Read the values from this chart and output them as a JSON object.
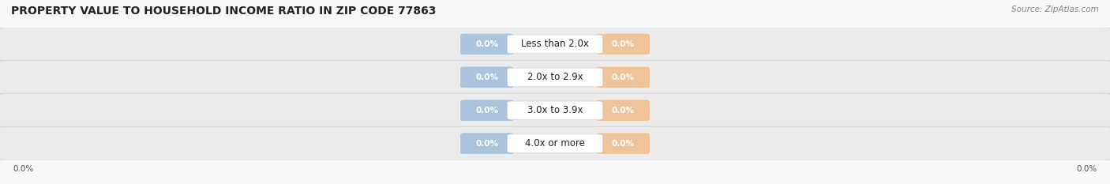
{
  "title": "PROPERTY VALUE TO HOUSEHOLD INCOME RATIO IN ZIP CODE 77863",
  "source": "Source: ZipAtlas.com",
  "categories": [
    "Less than 2.0x",
    "2.0x to 2.9x",
    "3.0x to 3.9x",
    "4.0x or more"
  ],
  "without_mortgage": [
    0.0,
    0.0,
    0.0,
    0.0
  ],
  "with_mortgage": [
    0.0,
    0.0,
    0.0,
    0.0
  ],
  "without_mortgage_color": "#aac4de",
  "with_mortgage_color": "#f0c49a",
  "bar_bg_color": "#ebebeb",
  "bar_bg_edge_color": "#d8d8d8",
  "title_fontsize": 10,
  "label_fontsize": 7.5,
  "category_fontsize": 8.5,
  "legend_fontsize": 8.5,
  "source_fontsize": 7.5,
  "tick_label_left": "0.0%",
  "tick_label_right": "0.0%",
  "background_color": "#f7f7f7",
  "pill_label_color": "#ffffff",
  "category_label_color": "#222222",
  "tick_color": "#555555"
}
